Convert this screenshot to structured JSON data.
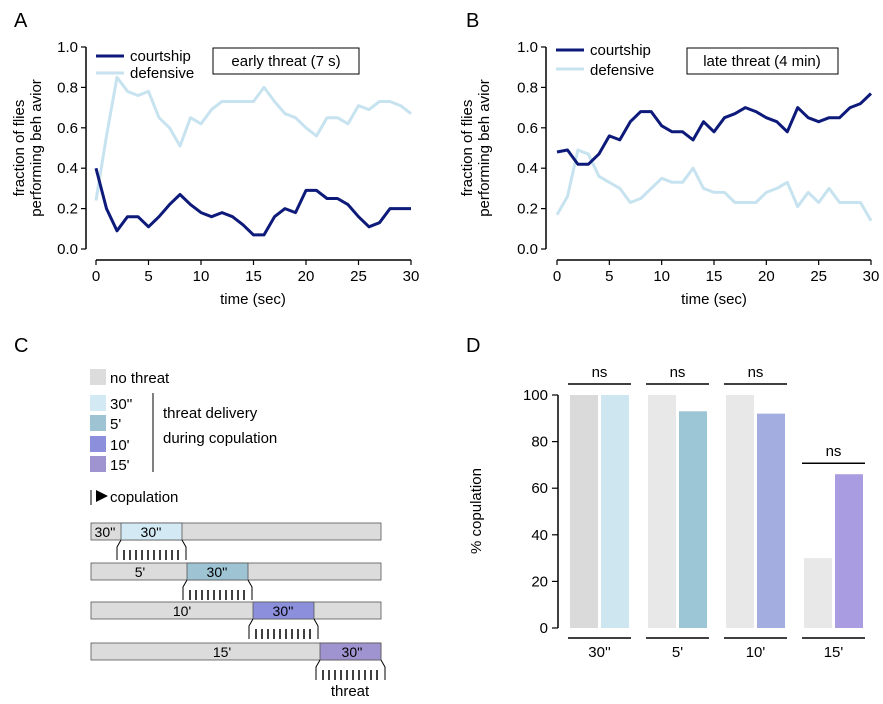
{
  "panels": {
    "A": {
      "label": "A"
    },
    "B": {
      "label": "B"
    },
    "C": {
      "label": "C"
    },
    "D": {
      "label": "D"
    }
  },
  "chart_data": [
    {
      "panel": "A",
      "type": "line",
      "annotation": "early threat (7 s)",
      "xlabel": "time (sec)",
      "ylabel_lines": [
        "fraction of flies",
        "performing beh avior"
      ],
      "xlim": [
        0,
        30
      ],
      "ylim": [
        0,
        1.0
      ],
      "xticks": [
        0,
        5,
        10,
        15,
        20,
        25,
        30
      ],
      "yticks": [
        0.0,
        0.2,
        0.4,
        0.6,
        0.8,
        1.0
      ],
      "ytick_labels": [
        "0.0",
        "0.2",
        "0.4",
        "0.6",
        "0.8",
        "1.0"
      ],
      "legend_position": "top-left",
      "x": [
        0,
        1,
        2,
        3,
        4,
        5,
        6,
        7,
        8,
        9,
        10,
        11,
        12,
        13,
        14,
        15,
        16,
        17,
        18,
        19,
        20,
        21,
        22,
        23,
        24,
        25,
        26,
        27,
        28,
        29,
        30
      ],
      "series": [
        {
          "name": "courtship",
          "color": "#0d1a7a",
          "values": [
            0.4,
            0.2,
            0.09,
            0.16,
            0.16,
            0.11,
            0.16,
            0.22,
            0.27,
            0.22,
            0.18,
            0.16,
            0.18,
            0.16,
            0.12,
            0.07,
            0.07,
            0.16,
            0.2,
            0.18,
            0.29,
            0.29,
            0.25,
            0.25,
            0.22,
            0.16,
            0.11,
            0.13,
            0.2,
            0.2,
            0.2
          ]
        },
        {
          "name": "defensive",
          "color": "#c7e3ef",
          "values": [
            0.24,
            0.56,
            0.85,
            0.78,
            0.76,
            0.78,
            0.65,
            0.6,
            0.51,
            0.65,
            0.62,
            0.69,
            0.73,
            0.73,
            0.73,
            0.73,
            0.8,
            0.73,
            0.67,
            0.65,
            0.6,
            0.56,
            0.65,
            0.65,
            0.62,
            0.71,
            0.69,
            0.73,
            0.73,
            0.71,
            0.67
          ]
        }
      ]
    },
    {
      "panel": "B",
      "type": "line",
      "annotation": "late threat (4 min)",
      "xlabel": "time (sec)",
      "ylabel_lines": [
        "fraction of flies",
        "performing beh avior"
      ],
      "xlim": [
        0,
        30
      ],
      "ylim": [
        0,
        1.0
      ],
      "xticks": [
        0,
        5,
        10,
        15,
        20,
        25,
        30
      ],
      "yticks": [
        0.0,
        0.2,
        0.4,
        0.6,
        0.8,
        1.0
      ],
      "ytick_labels": [
        "0.0",
        "0.2",
        "0.4",
        "0.6",
        "0.8",
        "1.0"
      ],
      "legend_position": "top-left",
      "x": [
        0,
        1,
        2,
        3,
        4,
        5,
        6,
        7,
        8,
        9,
        10,
        11,
        12,
        13,
        14,
        15,
        16,
        17,
        18,
        19,
        20,
        21,
        22,
        23,
        24,
        25,
        26,
        27,
        28,
        29,
        30
      ],
      "series": [
        {
          "name": "courtship",
          "color": "#0d1a7a",
          "values": [
            0.48,
            0.49,
            0.42,
            0.42,
            0.47,
            0.56,
            0.54,
            0.63,
            0.68,
            0.68,
            0.61,
            0.58,
            0.58,
            0.54,
            0.63,
            0.58,
            0.65,
            0.67,
            0.7,
            0.68,
            0.65,
            0.63,
            0.58,
            0.7,
            0.65,
            0.63,
            0.65,
            0.65,
            0.7,
            0.72,
            0.77
          ]
        },
        {
          "name": "defensive",
          "color": "#c7e3ef",
          "values": [
            0.17,
            0.26,
            0.49,
            0.47,
            0.36,
            0.33,
            0.3,
            0.23,
            0.25,
            0.3,
            0.35,
            0.33,
            0.33,
            0.4,
            0.3,
            0.28,
            0.28,
            0.23,
            0.23,
            0.23,
            0.28,
            0.3,
            0.33,
            0.21,
            0.28,
            0.23,
            0.3,
            0.23,
            0.23,
            0.23,
            0.14
          ]
        }
      ]
    },
    {
      "panel": "D",
      "type": "bar",
      "ylabel": "% copulation",
      "ylim": [
        0,
        100
      ],
      "yticks": [
        0,
        20,
        40,
        60,
        80,
        100
      ],
      "categories": [
        "30''",
        "5'",
        "10'",
        "15'"
      ],
      "significance": [
        "ns",
        "ns",
        "ns",
        "ns"
      ],
      "no_threat_values": [
        100,
        100,
        100,
        30
      ],
      "threat_values": [
        100,
        93,
        92,
        66
      ],
      "no_threat_colors": [
        "#dadada",
        "#e8e8e8",
        "#e8e8e8",
        "#e8e8e8"
      ],
      "threat_colors": [
        "#cde6f0",
        "#9cc6d6",
        "#a3ade0",
        "#a99ce0"
      ]
    }
  ],
  "schematic": {
    "legend": [
      {
        "label": "no threat",
        "color": "#dcdcdc"
      },
      {
        "label": "30''",
        "color": "#d3eaf4"
      },
      {
        "label": "5'",
        "color": "#9ec4d4"
      },
      {
        "label": "10'",
        "color": "#8c8fdc"
      },
      {
        "label": "15'",
        "color": "#9f94cf"
      }
    ],
    "delivery_label_lines": [
      "threat delivery",
      "during copulation"
    ],
    "copulation_label": "copulation",
    "threat_label": "threat",
    "rows": [
      {
        "pre_label": "30''",
        "window_label": "30''",
        "color": "#d3eaf4"
      },
      {
        "pre_label": "5'",
        "window_label": "30''",
        "color": "#9ec4d4"
      },
      {
        "pre_label": "10'",
        "window_label": "30''",
        "color": "#8c8fdc"
      },
      {
        "pre_label": "15'",
        "window_label": "30''",
        "color": "#9f94cf"
      }
    ]
  }
}
